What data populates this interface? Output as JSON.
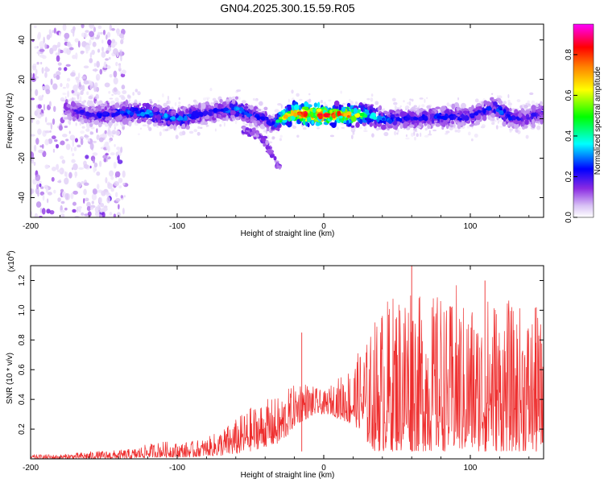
{
  "title": "GN04.2025.300.15.59.R05",
  "colors": {
    "snr_line": "#ee2d2d",
    "axis": "#000000",
    "background": "#ffffff"
  },
  "chart_data": [
    {
      "type": "heatmap",
      "title": "GN04.2025.300.15.59.R05",
      "xlabel": "Height of straight line (km)",
      "ylabel": "Frequency (Hz)",
      "xlim": [
        -200,
        150
      ],
      "ylim": [
        -50,
        48
      ],
      "x_ticks": [
        -200,
        -100,
        0,
        100
      ],
      "x_tick_labels": [
        "-200",
        "-100",
        "0",
        "100"
      ],
      "y_ticks": [
        -40,
        -20,
        0,
        20,
        40
      ],
      "y_tick_labels": [
        "-40",
        "-20",
        "0",
        "20",
        "40"
      ],
      "colorbar": {
        "label": "Normalized spectral amplitude",
        "range": [
          0.0,
          0.95
        ],
        "ticks": [
          0.0,
          0.2,
          0.4,
          0.6,
          0.8
        ],
        "tick_labels": [
          "0.0",
          "0.2",
          "0.4",
          "0.6",
          "0.8"
        ],
        "colormap": [
          "#ffffff",
          "#d9c2f5",
          "#8a2be2",
          "#0000ff",
          "#00ffff",
          "#00ff00",
          "#ffff00",
          "#ff8000",
          "#ff0000",
          "#ff00ff"
        ]
      },
      "ridge": {
        "description": "dominant frequency band",
        "x": [
          -175,
          -160,
          -140,
          -120,
          -100,
          -80,
          -60,
          -50,
          -40,
          -35,
          -30,
          -20,
          -10,
          0,
          10,
          20,
          30,
          40,
          60,
          80,
          100,
          115,
          120,
          130,
          140,
          150
        ],
        "freq_hz": [
          5,
          2,
          3,
          3,
          0,
          3,
          5,
          2,
          0,
          -3,
          0,
          3,
          2,
          2,
          2,
          2,
          2,
          0,
          0,
          1,
          1,
          6,
          4,
          0,
          1,
          3
        ],
        "peak_amplitude": [
          0.3,
          0.3,
          0.35,
          0.4,
          0.4,
          0.3,
          0.4,
          0.35,
          0.3,
          0.3,
          0.6,
          0.85,
          0.9,
          0.9,
          0.85,
          0.75,
          0.5,
          0.4,
          0.3,
          0.35,
          0.3,
          0.35,
          0.4,
          0.3,
          0.3,
          0.3
        ]
      },
      "noise_region_x": [
        -200,
        -135
      ],
      "descending_branch": {
        "x": [
          -55,
          -45,
          -40,
          -35,
          -30
        ],
        "freq_hz": [
          -5,
          -8,
          -12,
          -18,
          -25
        ]
      }
    },
    {
      "type": "line",
      "xlabel": "Height of straight line (km)",
      "ylabel": "SNR (10 * v/v)",
      "scale_label": "(x10",
      "scale_exp": "4",
      "xlim": [
        -200,
        150
      ],
      "ylim": [
        0.0,
        1.3
      ],
      "x_ticks": [
        -200,
        -100,
        0,
        100
      ],
      "x_tick_labels": [
        "-200",
        "-100",
        "0",
        "100"
      ],
      "y_ticks": [
        0.2,
        0.4,
        0.6,
        0.8,
        1.0,
        1.2
      ],
      "y_tick_labels": [
        "0.2",
        "0.4",
        "0.6",
        "0.8",
        "1.0",
        "1.2"
      ],
      "series": [
        {
          "name": "SNR",
          "color": "#ee2d2d",
          "envelope": {
            "x": [
              -200,
              -180,
              -160,
              -140,
              -130,
              -120,
              -110,
              -100,
              -90,
              -80,
              -70,
              -60,
              -50,
              -40,
              -30,
              -25,
              -20,
              -15,
              -10,
              -5,
              0,
              5,
              10,
              15,
              20,
              25,
              30,
              35,
              40,
              45,
              50,
              55,
              60,
              65,
              70,
              75,
              80,
              85,
              90,
              95,
              100,
              105,
              110,
              115,
              120,
              125,
              130,
              135,
              140,
              145,
              150
            ],
            "upper": [
              0.03,
              0.03,
              0.05,
              0.06,
              0.07,
              0.1,
              0.12,
              0.11,
              0.12,
              0.14,
              0.2,
              0.27,
              0.35,
              0.4,
              0.42,
              0.47,
              0.5,
              0.55,
              0.5,
              0.48,
              0.45,
              0.5,
              0.55,
              0.6,
              0.65,
              0.75,
              0.8,
              0.95,
              1.05,
              1.1,
              1.15,
              1.2,
              1.3,
              1.1,
              1.15,
              1.1,
              1.15,
              1.0,
              1.2,
              1.05,
              1.1,
              1.0,
              1.05,
              1.2,
              1.0,
              1.1,
              1.0,
              1.05,
              1.0,
              1.02,
              0.9
            ],
            "lower": [
              0.0,
              0.0,
              0.0,
              0.0,
              0.0,
              0.01,
              0.01,
              0.01,
              0.01,
              0.02,
              0.02,
              0.03,
              0.05,
              0.08,
              0.1,
              0.15,
              0.22,
              0.25,
              0.28,
              0.3,
              0.3,
              0.3,
              0.27,
              0.25,
              0.22,
              0.2,
              0.1,
              0.05,
              0.05,
              0.05,
              0.05,
              0.05,
              0.05,
              0.05,
              0.05,
              0.05,
              0.05,
              0.05,
              0.05,
              0.05,
              0.05,
              0.05,
              0.05,
              0.05,
              0.05,
              0.05,
              0.05,
              0.05,
              0.05,
              0.05,
              0.05
            ]
          },
          "spikes": [
            {
              "x": -15,
              "y": 0.85
            },
            {
              "x": 60,
              "y": 1.32
            },
            {
              "x": 110,
              "y": 1.2
            },
            {
              "x": 145,
              "y": 1.02
            }
          ]
        }
      ]
    }
  ]
}
